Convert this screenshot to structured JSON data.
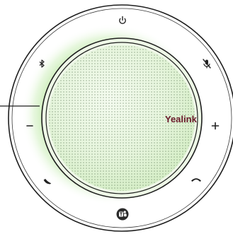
{
  "device": {
    "brand": "Yealink",
    "brand_color": "#6b1a2b",
    "glow_color": "#8fd06f",
    "ring_color": "#1e1e1e"
  },
  "controls": {
    "power": {
      "icon": "power-icon",
      "glyph": "⏻"
    },
    "bluetooth": {
      "icon": "bluetooth-icon"
    },
    "mute": {
      "icon": "mic-mute-icon"
    },
    "volume_down": {
      "icon": "minus-icon",
      "glyph": "−"
    },
    "volume_up": {
      "icon": "plus-icon",
      "glyph": "+"
    },
    "answer": {
      "icon": "phone-answer-icon"
    },
    "hangup": {
      "icon": "phone-hangup-icon"
    },
    "teams": {
      "icon": "teams-icon"
    }
  }
}
